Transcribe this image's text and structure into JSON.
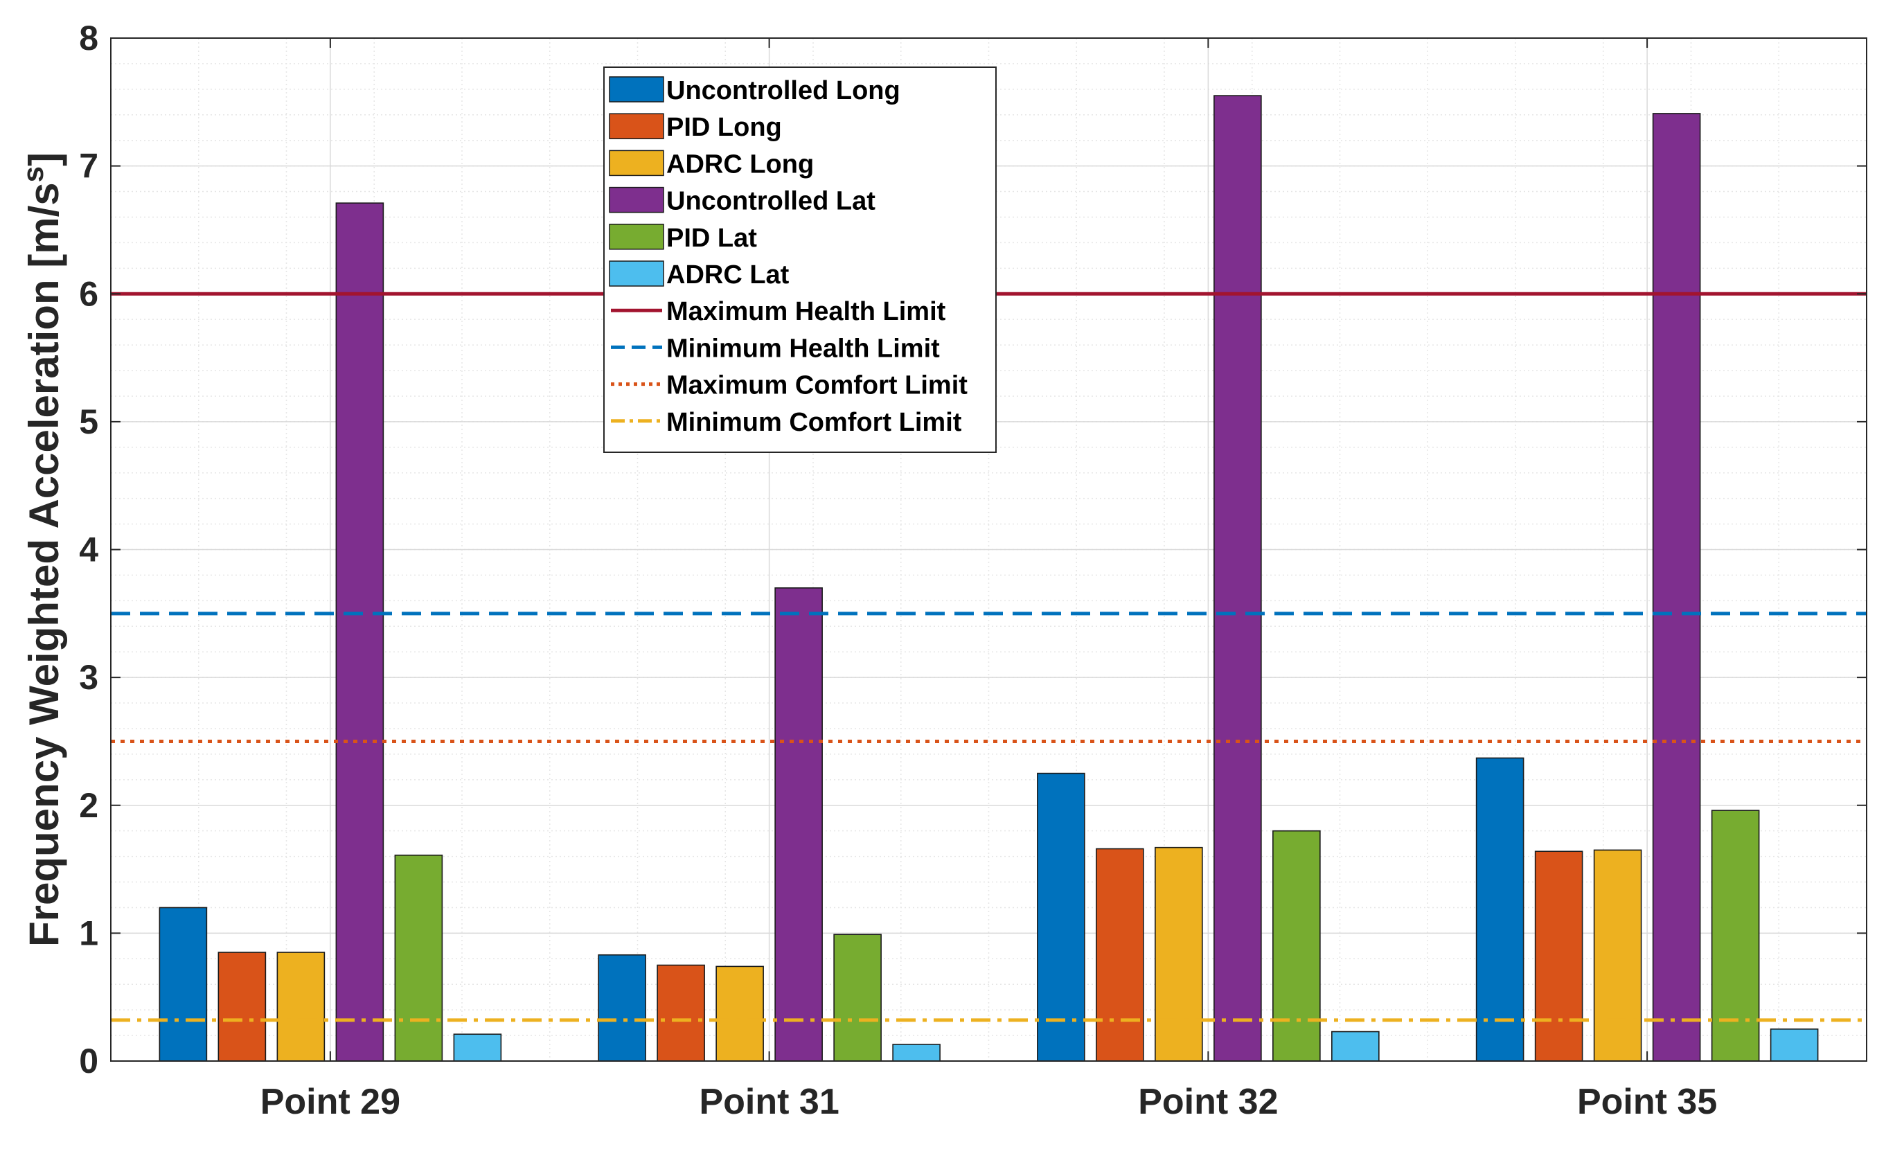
{
  "chart_data": {
    "type": "bar",
    "title": "",
    "xlabel": "",
    "ylabel": "Frequency Weighted Acceleration [m/s",
    "ylabel_superscript": "s",
    "ylabel_suffix": "]",
    "ylim": [
      0,
      8
    ],
    "yticks": [
      "0",
      "1",
      "2",
      "3",
      "4",
      "5",
      "6",
      "7",
      "8"
    ],
    "grid": true,
    "minor_grid": true,
    "legend_location": "top-center",
    "categories": [
      "Point 29",
      "Point 31",
      "Point 32",
      "Point 35"
    ],
    "series": [
      {
        "name": "Uncontrolled Long",
        "color": "#0072BD",
        "values": [
          1.2,
          0.83,
          2.25,
          2.37
        ]
      },
      {
        "name": "PID Long",
        "color": "#D95319",
        "values": [
          0.85,
          0.75,
          1.66,
          1.64
        ]
      },
      {
        "name": "ADRC Long",
        "color": "#EDB120",
        "values": [
          0.85,
          0.74,
          1.67,
          1.65
        ]
      },
      {
        "name": "Uncontrolled Lat",
        "color": "#7E2F8E",
        "values": [
          6.71,
          3.7,
          7.55,
          7.41
        ]
      },
      {
        "name": "PID Lat",
        "color": "#77AC30",
        "values": [
          1.61,
          0.99,
          1.8,
          1.96
        ]
      },
      {
        "name": "ADRC Lat",
        "color": "#4DBEEE",
        "values": [
          0.21,
          0.13,
          0.23,
          0.25
        ]
      }
    ],
    "reference_lines": [
      {
        "name": "Maximum Health Limit",
        "value": 6.0,
        "color": "#A2142F",
        "style": "solid"
      },
      {
        "name": "Minimum Health Limit",
        "value": 3.5,
        "color": "#0072BD",
        "style": "dashed"
      },
      {
        "name": "Maximum Comfort Limit",
        "value": 2.5,
        "color": "#D95319",
        "style": "dotted"
      },
      {
        "name": "Minimum Comfort Limit",
        "value": 0.32,
        "color": "#EDB120",
        "style": "dashdot"
      }
    ]
  }
}
